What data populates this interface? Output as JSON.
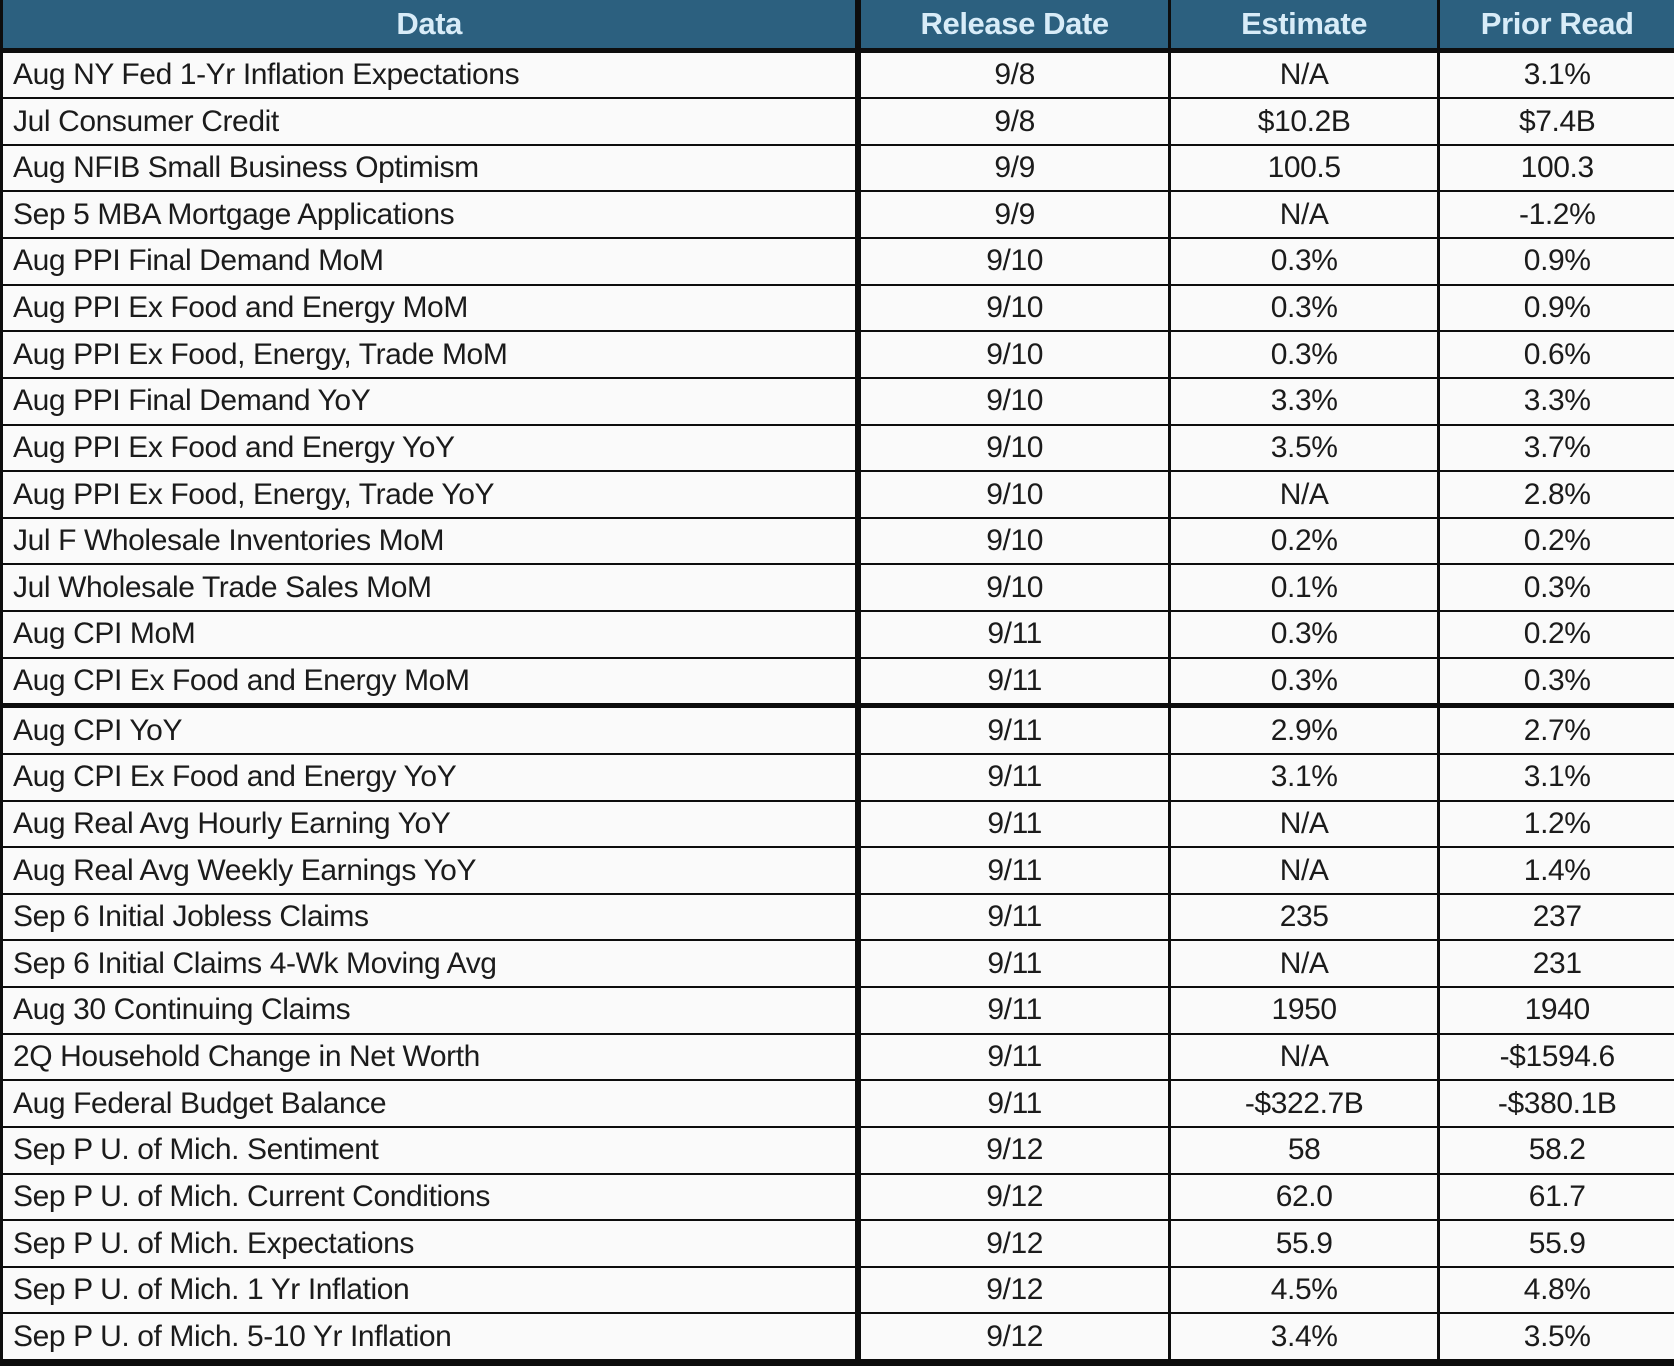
{
  "chart_data": {
    "type": "table",
    "columns": [
      "Data",
      "Release Date",
      "Estimate",
      "Prior Read"
    ],
    "rows": [
      {
        "data": "Aug NY Fed 1-Yr Inflation Expectations",
        "release_date": "9/8",
        "estimate": "N/A",
        "prior_read": "3.1%"
      },
      {
        "data": "Jul Consumer Credit",
        "release_date": "9/8",
        "estimate": "$10.2B",
        "prior_read": "$7.4B"
      },
      {
        "data": "Aug NFIB Small Business Optimism",
        "release_date": "9/9",
        "estimate": "100.5",
        "prior_read": "100.3"
      },
      {
        "data": "Sep 5 MBA Mortgage Applications",
        "release_date": "9/9",
        "estimate": "N/A",
        "prior_read": "-1.2%"
      },
      {
        "data": "Aug PPI Final Demand MoM",
        "release_date": "9/10",
        "estimate": "0.3%",
        "prior_read": "0.9%"
      },
      {
        "data": "Aug PPI Ex Food and Energy MoM",
        "release_date": "9/10",
        "estimate": "0.3%",
        "prior_read": "0.9%"
      },
      {
        "data": "Aug PPI Ex Food, Energy, Trade MoM",
        "release_date": "9/10",
        "estimate": "0.3%",
        "prior_read": "0.6%"
      },
      {
        "data": "Aug PPI Final Demand YoY",
        "release_date": "9/10",
        "estimate": "3.3%",
        "prior_read": "3.3%"
      },
      {
        "data": "Aug PPI Ex Food and Energy YoY",
        "release_date": "9/10",
        "estimate": "3.5%",
        "prior_read": "3.7%"
      },
      {
        "data": "Aug PPI Ex Food, Energy, Trade YoY",
        "release_date": "9/10",
        "estimate": "N/A",
        "prior_read": "2.8%"
      },
      {
        "data": "Jul F Wholesale Inventories MoM",
        "release_date": "9/10",
        "estimate": "0.2%",
        "prior_read": "0.2%"
      },
      {
        "data": "Jul Wholesale Trade Sales MoM",
        "release_date": "9/10",
        "estimate": "0.1%",
        "prior_read": "0.3%"
      },
      {
        "data": "Aug CPI MoM",
        "release_date": "9/11",
        "estimate": "0.3%",
        "prior_read": "0.2%"
      },
      {
        "data": "Aug CPI Ex Food and Energy MoM",
        "release_date": "9/11",
        "estimate": "0.3%",
        "prior_read": "0.3%"
      },
      {
        "data": "Aug CPI YoY",
        "release_date": "9/11",
        "estimate": "2.9%",
        "prior_read": "2.7%"
      },
      {
        "data": "Aug CPI Ex Food and Energy YoY",
        "release_date": "9/11",
        "estimate": "3.1%",
        "prior_read": "3.1%"
      },
      {
        "data": "Aug Real Avg Hourly Earning YoY",
        "release_date": "9/11",
        "estimate": "N/A",
        "prior_read": "1.2%"
      },
      {
        "data": "Aug Real Avg Weekly Earnings YoY",
        "release_date": "9/11",
        "estimate": "N/A",
        "prior_read": "1.4%"
      },
      {
        "data": "Sep 6 Initial Jobless Claims",
        "release_date": "9/11",
        "estimate": "235",
        "prior_read": "237"
      },
      {
        "data": "Sep 6 Initial Claims 4-Wk Moving Avg",
        "release_date": "9/11",
        "estimate": "N/A",
        "prior_read": "231"
      },
      {
        "data": "Aug 30 Continuing Claims",
        "release_date": "9/11",
        "estimate": "1950",
        "prior_read": "1940"
      },
      {
        "data": "2Q Household Change in Net Worth",
        "release_date": "9/11",
        "estimate": "N/A",
        "prior_read": "-$1594.6"
      },
      {
        "data": "Aug Federal Budget Balance",
        "release_date": "9/11",
        "estimate": "-$322.7B",
        "prior_read": "-$380.1B"
      },
      {
        "data": "Sep P U. of Mich. Sentiment",
        "release_date": "9/12",
        "estimate": "58",
        "prior_read": "58.2"
      },
      {
        "data": "Sep P U. of Mich. Current Conditions",
        "release_date": "9/12",
        "estimate": "62.0",
        "prior_read": "61.7"
      },
      {
        "data": "Sep P U. of Mich. Expectations",
        "release_date": "9/12",
        "estimate": "55.9",
        "prior_read": "55.9"
      },
      {
        "data": "Sep P U. of Mich. 1 Yr Inflation",
        "release_date": "9/12",
        "estimate": "4.5%",
        "prior_read": "4.8%"
      },
      {
        "data": "Sep P U. of Mich. 5-10 Yr Inflation",
        "release_date": "9/12",
        "estimate": "3.4%",
        "prior_read": "3.5%"
      }
    ]
  },
  "colors": {
    "header_bg": "#2c607f",
    "header_text": "#d8ecf8",
    "cell_bg": "#fafafa",
    "border": "#0d0d0d",
    "text": "#1b1b1b"
  }
}
